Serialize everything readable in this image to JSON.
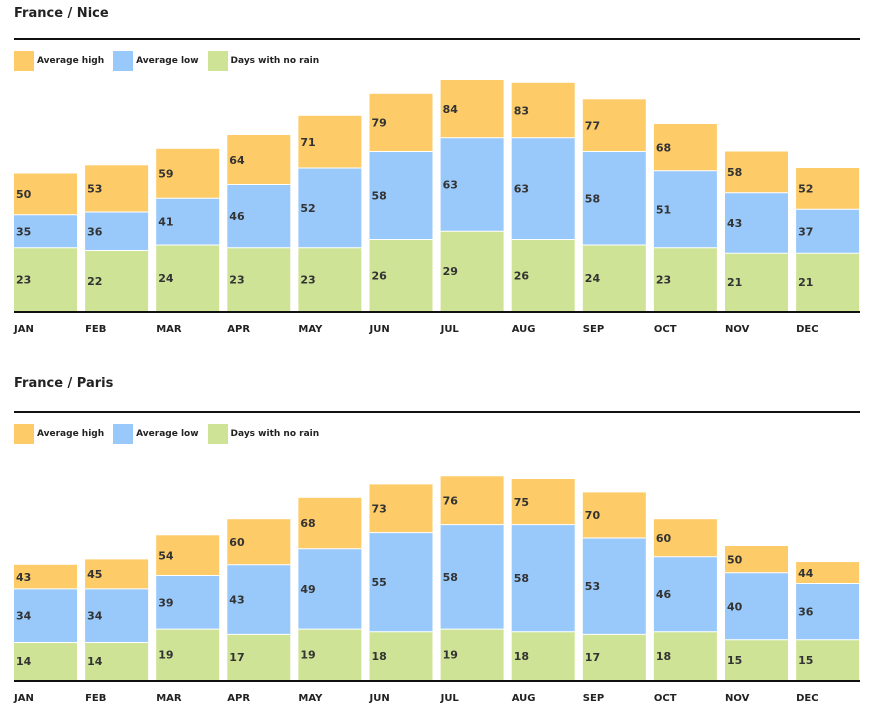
{
  "colors": {
    "high": "#fdcb68",
    "low": "#99c9fb",
    "dry": "#cfe396",
    "axis": "#111111"
  },
  "legend": {
    "high": "Average high",
    "low": "Average low",
    "dry": "Days with no rain"
  },
  "chart_data": [
    {
      "type": "bar",
      "title": "France / Nice",
      "categories": [
        "JAN",
        "FEB",
        "MAR",
        "APR",
        "MAY",
        "JUN",
        "JUL",
        "AUG",
        "SEP",
        "OCT",
        "NOV",
        "DEC"
      ],
      "series": [
        {
          "name": "Average high",
          "values": [
            50,
            53,
            59,
            64,
            71,
            79,
            84,
            83,
            77,
            68,
            58,
            52
          ]
        },
        {
          "name": "Average low",
          "values": [
            35,
            36,
            41,
            46,
            52,
            58,
            63,
            63,
            58,
            51,
            43,
            37
          ]
        },
        {
          "name": "Days with no rain",
          "values": [
            23,
            22,
            24,
            23,
            23,
            26,
            29,
            26,
            24,
            23,
            21,
            21
          ]
        }
      ],
      "legend_position": "top-left"
    },
    {
      "type": "bar",
      "title": "France / Paris",
      "categories": [
        "JAN",
        "FEB",
        "MAR",
        "APR",
        "MAY",
        "JUN",
        "JUL",
        "AUG",
        "SEP",
        "OCT",
        "NOV",
        "DEC"
      ],
      "series": [
        {
          "name": "Average high",
          "values": [
            43,
            45,
            54,
            60,
            68,
            73,
            76,
            75,
            70,
            60,
            50,
            44
          ]
        },
        {
          "name": "Average low",
          "values": [
            34,
            34,
            39,
            43,
            49,
            55,
            58,
            58,
            53,
            46,
            40,
            36
          ]
        },
        {
          "name": "Days with no rain",
          "values": [
            14,
            14,
            19,
            17,
            19,
            18,
            19,
            18,
            17,
            18,
            15,
            15
          ]
        }
      ],
      "legend_position": "top-left"
    }
  ]
}
